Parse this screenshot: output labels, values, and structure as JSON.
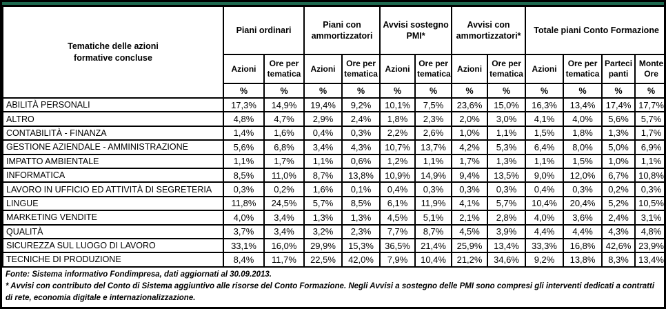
{
  "accent_color": "#1e6a50",
  "header": {
    "title_lines": [
      "Tematiche delle azioni",
      "formative concluse"
    ],
    "groups": [
      {
        "label": "Piani ordinari",
        "subcolumns": [
          "Azioni",
          "Ore per tematica"
        ]
      },
      {
        "label": "Piani con ammortizzatori",
        "subcolumns": [
          "Azioni",
          "Ore per tematica"
        ]
      },
      {
        "label": "Avvisi  sostegno PMI*",
        "subcolumns": [
          "Azioni",
          "Ore per tematica"
        ]
      },
      {
        "label": "Avvisi con ammortizzatori*",
        "subcolumns": [
          "Azioni",
          "Ore per tematica"
        ]
      },
      {
        "label": "Totale piani Conto Formazione",
        "subcolumns": [
          "Azioni",
          "Ore per tematica",
          "Parteci panti",
          "Monte Ore"
        ]
      }
    ],
    "unit_symbol": "%"
  },
  "chart_data": {
    "type": "table",
    "title": "Tematiche delle azioni formative concluse",
    "unit": "percent",
    "value_format": "italian_decimal_comma_one_digit",
    "categories": [
      "ABILITÀ PERSONALI",
      "ALTRO",
      "CONTABILITÀ - FINANZA",
      "GESTIONE AZIENDALE - AMMINISTRAZIONE",
      "IMPATTO AMBIENTALE",
      "INFORMATICA",
      "LAVORO IN UFFICIO ED ATTIVITÀ DI SEGRETERIA",
      "LINGUE",
      "MARKETING VENDITE",
      "QUALITÀ",
      "SICUREZZA SUL LUOGO DI LAVORO",
      "TECNICHE DI PRODUZIONE"
    ],
    "series": [
      {
        "group": "Piani ordinari",
        "name": "Azioni %",
        "values": [
          17.3,
          4.8,
          1.4,
          5.6,
          1.1,
          8.5,
          0.3,
          11.8,
          4.0,
          3.7,
          33.1,
          8.4
        ]
      },
      {
        "group": "Piani ordinari",
        "name": "Ore per tematica %",
        "values": [
          14.9,
          4.7,
          1.6,
          6.8,
          1.7,
          11.0,
          0.2,
          24.5,
          3.4,
          3.4,
          16.0,
          11.7
        ]
      },
      {
        "group": "Piani con ammortizzatori",
        "name": "Azioni %",
        "values": [
          19.4,
          2.9,
          0.4,
          3.4,
          1.1,
          8.7,
          1.6,
          5.7,
          1.3,
          3.2,
          29.9,
          22.5
        ]
      },
      {
        "group": "Piani con ammortizzatori",
        "name": "Ore per tematica %",
        "values": [
          9.2,
          2.4,
          0.3,
          4.3,
          0.6,
          13.8,
          0.1,
          8.5,
          1.3,
          2.3,
          15.3,
          42.0
        ]
      },
      {
        "group": "Avvisi sostegno PMI*",
        "name": "Azioni %",
        "values": [
          10.1,
          1.8,
          2.2,
          10.7,
          1.2,
          10.9,
          0.4,
          6.1,
          4.5,
          7.7,
          36.5,
          7.9
        ]
      },
      {
        "group": "Avvisi sostegno PMI*",
        "name": "Ore per tematica %",
        "values": [
          7.5,
          2.3,
          2.6,
          13.7,
          1.1,
          14.9,
          0.3,
          11.9,
          5.1,
          8.7,
          21.4,
          10.4
        ]
      },
      {
        "group": "Avvisi con ammortizzatori*",
        "name": "Azioni %",
        "values": [
          23.6,
          2.0,
          1.0,
          4.2,
          1.7,
          9.4,
          0.3,
          4.1,
          2.1,
          4.5,
          25.9,
          21.2
        ]
      },
      {
        "group": "Avvisi con ammortizzatori*",
        "name": "Ore per tematica %",
        "values": [
          15.0,
          3.0,
          1.1,
          5.3,
          1.3,
          13.5,
          0.3,
          5.7,
          2.8,
          3.9,
          13.4,
          34.6
        ]
      },
      {
        "group": "Totale piani Conto Formazione",
        "name": "Azioni %",
        "values": [
          16.3,
          4.1,
          1.5,
          6.4,
          1.1,
          9.0,
          0.4,
          10.4,
          4.0,
          4.4,
          33.3,
          9.2
        ]
      },
      {
        "group": "Totale piani Conto Formazione",
        "name": "Ore per tematica %",
        "values": [
          13.4,
          4.0,
          1.8,
          8.0,
          1.5,
          12.0,
          0.3,
          20.4,
          3.6,
          4.4,
          16.8,
          13.8
        ]
      },
      {
        "group": "Totale piani Conto Formazione",
        "name": "Partecipanti %",
        "values": [
          17.4,
          5.6,
          1.3,
          5.0,
          1.0,
          6.7,
          0.2,
          5.2,
          2.4,
          4.3,
          42.6,
          8.3
        ]
      },
      {
        "group": "Totale piani Conto Formazione",
        "name": "Monte Ore %",
        "values": [
          17.7,
          5.7,
          1.7,
          6.9,
          1.1,
          10.8,
          0.3,
          10.5,
          3.1,
          4.8,
          23.9,
          13.4
        ]
      }
    ]
  },
  "footnotes": [
    "Fonte: Sistema informativo Fondimpresa, dati aggiornati al 30.09.2013.",
    "* Avvisi con contributo del Conto di Sistema aggiuntivo alle risorse del Conto Formazione. Negli Avvisi a sostegno delle PMI sono compresi gli interventi dedicati a contratti di rete, economia digitale e internazionalizzazione."
  ]
}
